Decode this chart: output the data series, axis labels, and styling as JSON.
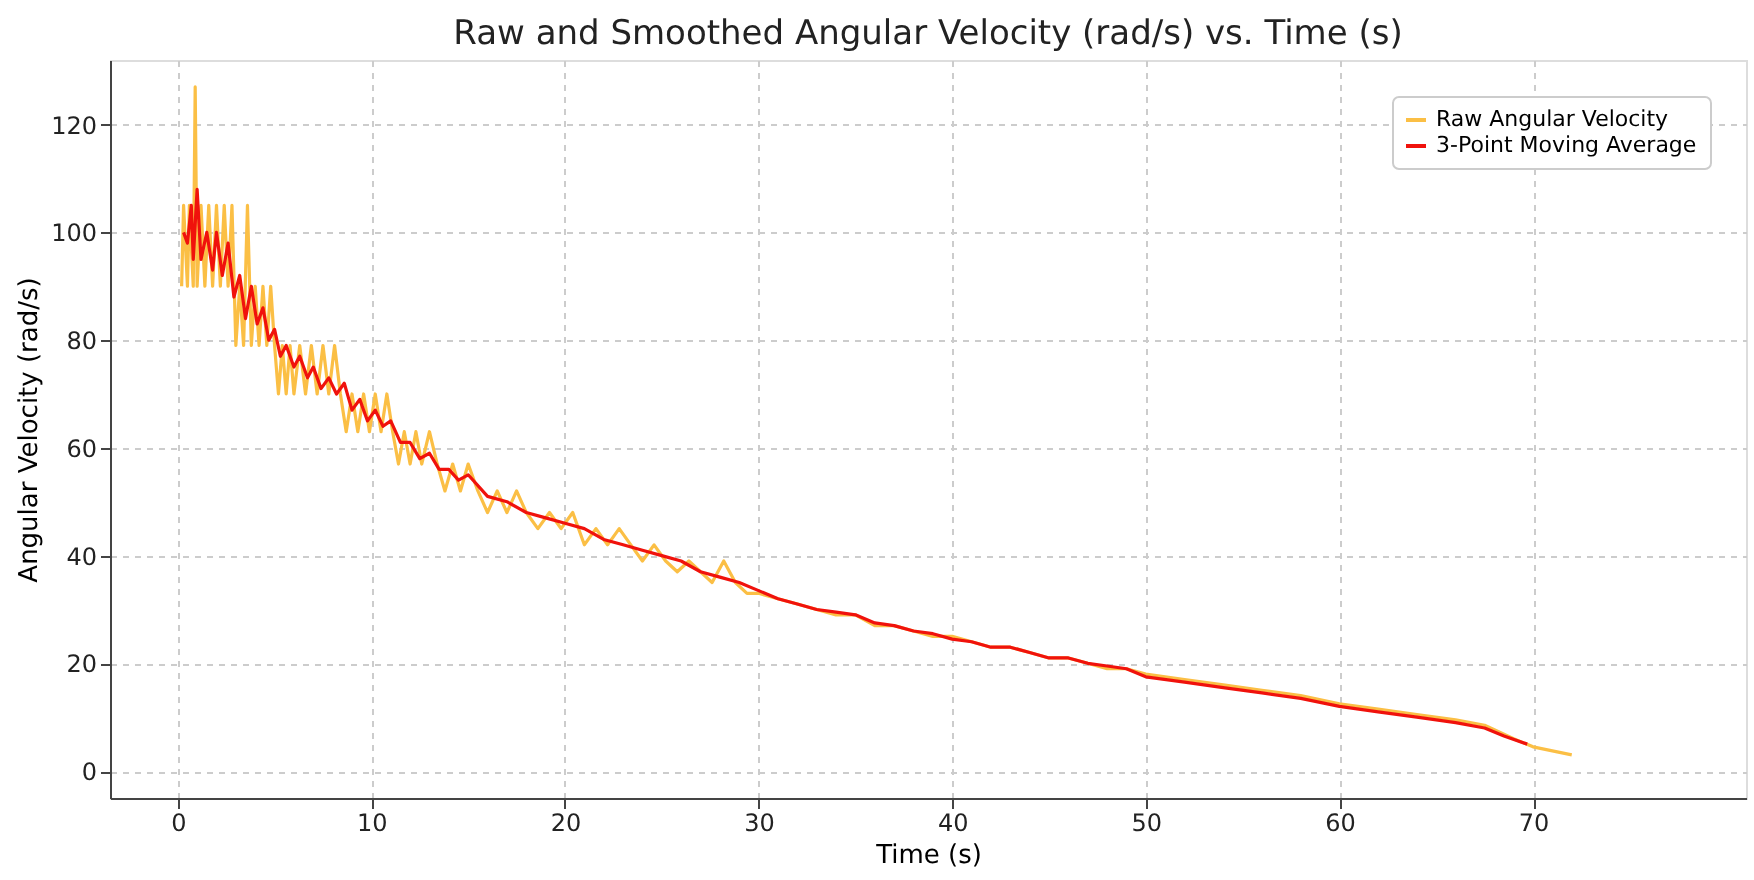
{
  "chart_data": {
    "type": "line",
    "title": "Raw and Smoothed Angular Velocity (rad/s) vs. Time (s)",
    "xlabel": "Time (s)",
    "ylabel": "Angular Velocity (rad/s)",
    "xlim": [
      -3.5,
      81
    ],
    "ylim": [
      -5,
      132
    ],
    "xticks": [
      0,
      10,
      20,
      30,
      40,
      50,
      60,
      70
    ],
    "yticks": [
      0,
      20,
      40,
      60,
      80,
      100,
      120
    ],
    "grid": true,
    "legend": "top right",
    "line_style": "solid",
    "marker": "none",
    "series": [
      {
        "name": "Raw Angular Velocity",
        "color": "#fbbf45",
        "x": [
          0.2,
          0.3,
          0.5,
          0.6,
          0.8,
          0.9,
          1.0,
          1.2,
          1.4,
          1.6,
          1.8,
          2.0,
          2.2,
          2.4,
          2.6,
          2.8,
          3.0,
          3.2,
          3.4,
          3.6,
          3.8,
          4.0,
          4.2,
          4.4,
          4.6,
          4.8,
          5.0,
          5.2,
          5.4,
          5.6,
          5.8,
          6.0,
          6.3,
          6.6,
          6.9,
          7.2,
          7.5,
          7.8,
          8.1,
          8.4,
          8.7,
          9.0,
          9.3,
          9.6,
          9.9,
          10.2,
          10.5,
          10.8,
          11.1,
          11.4,
          11.7,
          12.0,
          12.3,
          12.6,
          13.0,
          13.4,
          13.8,
          14.2,
          14.6,
          15.0,
          15.5,
          16.0,
          16.5,
          17.0,
          17.5,
          18.0,
          18.6,
          19.2,
          19.8,
          20.4,
          21.0,
          21.6,
          22.2,
          22.8,
          23.4,
          24.0,
          24.6,
          25.2,
          25.8,
          26.4,
          27.0,
          27.6,
          28.2,
          28.8,
          29.4,
          30,
          31,
          32,
          33,
          34,
          35,
          36,
          37,
          38,
          39,
          40,
          41,
          42,
          43,
          44,
          45,
          46,
          47,
          48,
          49,
          50,
          52,
          54,
          56,
          58,
          60,
          62,
          64,
          66,
          67.5,
          69,
          70,
          72
        ],
        "values": [
          90,
          105,
          90,
          105,
          90,
          127,
          90,
          105,
          90,
          105,
          90,
          105,
          90,
          105,
          90,
          105,
          79,
          90,
          79,
          105,
          79,
          90,
          79,
          90,
          79,
          90,
          79,
          70,
          79,
          70,
          79,
          70,
          79,
          70,
          79,
          70,
          79,
          70,
          79,
          70,
          63,
          70,
          63,
          70,
          63,
          70,
          63,
          70,
          63,
          57,
          63,
          57,
          63,
          57,
          63,
          57,
          52,
          57,
          52,
          57,
          52,
          48,
          52,
          48,
          52,
          48,
          45,
          48,
          45,
          48,
          42,
          45,
          42,
          45,
          42,
          39,
          42,
          39,
          37,
          39,
          37,
          35,
          39,
          35,
          33,
          33,
          32,
          31,
          30,
          29,
          29,
          27,
          27,
          26,
          25,
          25,
          24,
          23,
          23,
          22,
          21,
          21,
          20,
          19,
          19,
          18,
          17,
          16,
          15,
          14,
          12.5,
          11.5,
          10.5,
          9.5,
          8.5,
          6,
          4.5,
          3
        ]
      },
      {
        "name": "3-Point Moving Average",
        "color": "#f0120c",
        "x": [
          0.3,
          0.5,
          0.7,
          0.8,
          1.0,
          1.2,
          1.5,
          1.8,
          2.0,
          2.3,
          2.6,
          2.9,
          3.2,
          3.5,
          3.8,
          4.1,
          4.4,
          4.7,
          5.0,
          5.3,
          5.6,
          6.0,
          6.3,
          6.7,
          7.0,
          7.4,
          7.8,
          8.2,
          8.6,
          9.0,
          9.4,
          9.8,
          10.2,
          10.6,
          11.0,
          11.5,
          12,
          12.5,
          13,
          13.5,
          14,
          14.5,
          15,
          16,
          17,
          18,
          19,
          20,
          21,
          22,
          23,
          24,
          25,
          26,
          27,
          28,
          29,
          30,
          31,
          32,
          33,
          34,
          35,
          36,
          37,
          38,
          39,
          40,
          41,
          42,
          43,
          44,
          45,
          46,
          47,
          48,
          49,
          50,
          52,
          54,
          56,
          58,
          60,
          62,
          64,
          66,
          67.5,
          68.5,
          69.7
        ],
        "values": [
          100,
          98,
          105,
          95,
          108,
          95,
          100,
          93,
          100,
          92,
          98,
          88,
          92,
          84,
          90,
          83,
          86,
          80,
          82,
          77,
          79,
          75,
          77,
          73,
          75,
          71,
          73,
          70,
          72,
          67,
          69,
          65,
          67,
          64,
          65,
          61,
          61,
          58,
          59,
          56,
          56,
          54,
          55,
          51,
          50,
          48,
          47,
          46,
          45,
          43,
          42,
          41,
          40,
          39,
          37,
          36,
          35,
          33.5,
          32,
          31,
          30,
          29.5,
          29,
          27.5,
          27,
          26,
          25.5,
          24.5,
          24,
          23,
          23,
          22,
          21,
          21,
          20,
          19.5,
          19,
          17.5,
          16.5,
          15.5,
          14.5,
          13.5,
          12,
          11,
          10,
          9,
          8,
          6.5,
          5
        ]
      }
    ]
  }
}
